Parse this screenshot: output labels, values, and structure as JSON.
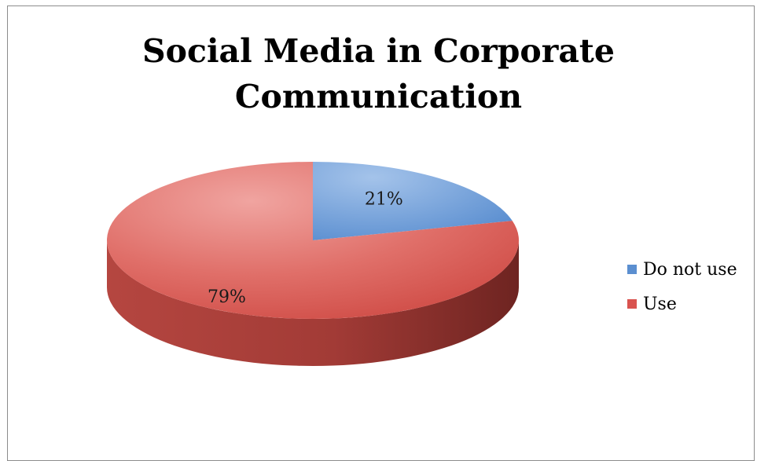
{
  "chart_data": {
    "type": "pie",
    "title_lines": [
      "Social Media in Corporate",
      "Communication"
    ],
    "slices": [
      {
        "label": "Do not use",
        "value": 21,
        "display": "21%",
        "color": "#5b8fd0"
      },
      {
        "label": "Use",
        "value": 79,
        "display": "79%",
        "color": "#d9534f"
      }
    ],
    "legend_placement": "right"
  }
}
